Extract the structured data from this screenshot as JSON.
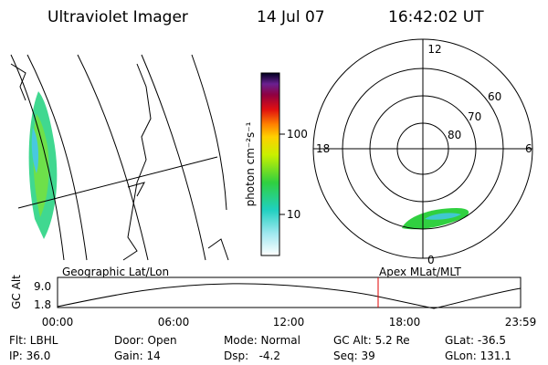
{
  "header": {
    "title": "Ultraviolet Imager",
    "date": "14 Jul 07",
    "time": "16:42:02 UT"
  },
  "map": {
    "label": "Geographic Lat/Lon"
  },
  "colorbar": {
    "label": "photon cm⁻²s⁻¹",
    "ticks": [
      "100",
      "10"
    ]
  },
  "polar": {
    "label": "Apex MLat/MLT",
    "hours": [
      "12",
      "18",
      "6",
      "0"
    ],
    "latitudes": [
      "60",
      "70",
      "80"
    ]
  },
  "altitude": {
    "ylabel": "GC Alt",
    "yticks": [
      "9.0",
      "1.8"
    ],
    "xticks": [
      "00:00",
      "06:00",
      "12:00",
      "18:00",
      "23:59"
    ]
  },
  "footer": {
    "rows": [
      [
        "Flt: LBHL",
        "Door: Open",
        "Mode: Normal",
        "GC Alt: 5.2 Re",
        "GLat: -36.5"
      ],
      [
        "IP: 36.0",
        "Gain: 14",
        "Dsp:   -4.2",
        "Seq: 39",
        "GLon: 131.1"
      ]
    ]
  }
}
